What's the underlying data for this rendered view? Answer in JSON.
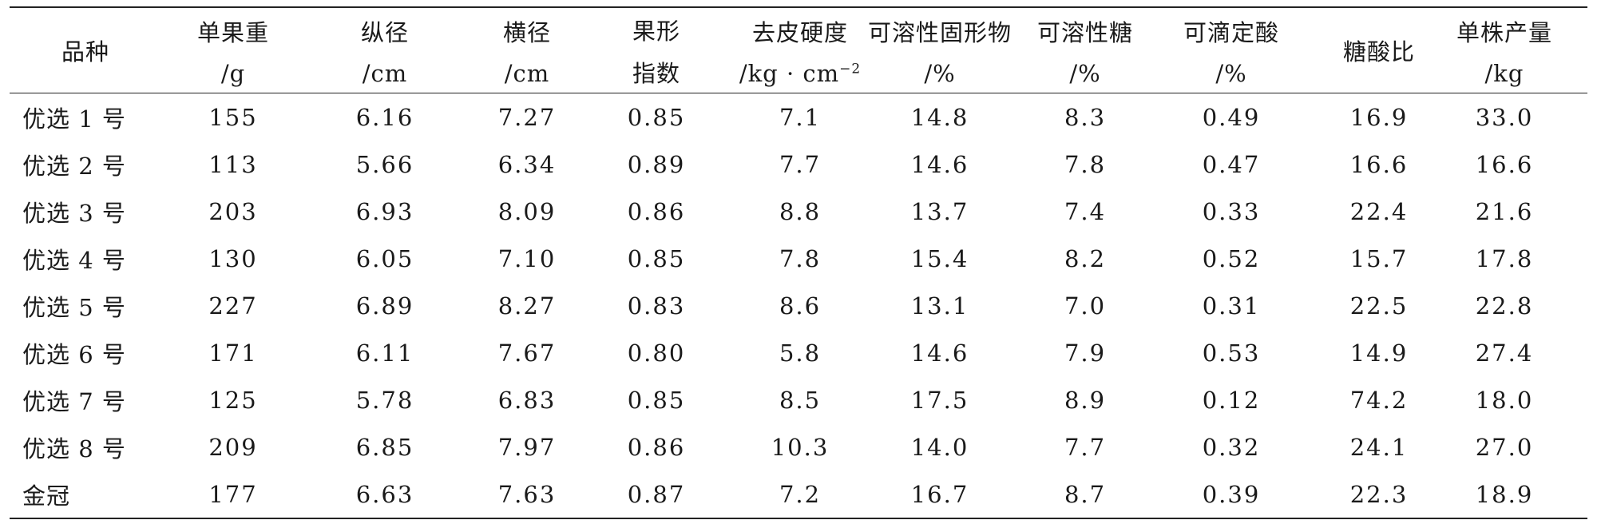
{
  "table": {
    "headers": [
      {
        "line1": "品种"
      },
      {
        "line1": "单果重",
        "line2": "/g"
      },
      {
        "line1": "纵径",
        "line2": "/cm"
      },
      {
        "line1": "横径",
        "line2": "/cm"
      },
      {
        "line1": "果形",
        "line2": "指数"
      },
      {
        "line1": "去皮硬度",
        "line2": "/kg · cm",
        "line2_sup": "−2"
      },
      {
        "line1": "可溶性固形物",
        "line2": "/%"
      },
      {
        "line1": "可溶性糖",
        "line2": "/%"
      },
      {
        "line1": "可滴定酸",
        "line2": "/%"
      },
      {
        "line1": "糖酸比"
      },
      {
        "line1": "单株产量",
        "line2": "/kg"
      }
    ],
    "rows": [
      [
        "优选 1 号",
        "155",
        "6.16",
        "7.27",
        "0.85",
        "7.1",
        "14.8",
        "8.3",
        "0.49",
        "16.9",
        "33.0"
      ],
      [
        "优选 2 号",
        "113",
        "5.66",
        "6.34",
        "0.89",
        "7.7",
        "14.6",
        "7.8",
        "0.47",
        "16.6",
        "16.6"
      ],
      [
        "优选 3 号",
        "203",
        "6.93",
        "8.09",
        "0.86",
        "8.8",
        "13.7",
        "7.4",
        "0.33",
        "22.4",
        "21.6"
      ],
      [
        "优选 4 号",
        "130",
        "6.05",
        "7.10",
        "0.85",
        "7.8",
        "15.4",
        "8.2",
        "0.52",
        "15.7",
        "17.8"
      ],
      [
        "优选 5 号",
        "227",
        "6.89",
        "8.27",
        "0.83",
        "8.6",
        "13.1",
        "7.0",
        "0.31",
        "22.5",
        "22.8"
      ],
      [
        "优选 6 号",
        "171",
        "6.11",
        "7.67",
        "0.80",
        "5.8",
        "14.6",
        "7.9",
        "0.53",
        "14.9",
        "27.4"
      ],
      [
        "优选 7 号",
        "125",
        "5.78",
        "6.83",
        "0.85",
        "8.5",
        "17.5",
        "8.9",
        "0.12",
        "74.2",
        "18.0"
      ],
      [
        "优选 8 号",
        "209",
        "6.85",
        "7.97",
        "0.86",
        "10.3",
        "14.0",
        "7.7",
        "0.32",
        "24.1",
        "27.0"
      ],
      [
        "金冠",
        "177",
        "6.63",
        "7.63",
        "0.87",
        "7.2",
        "16.7",
        "8.7",
        "0.39",
        "22.3",
        "18.9"
      ]
    ]
  }
}
